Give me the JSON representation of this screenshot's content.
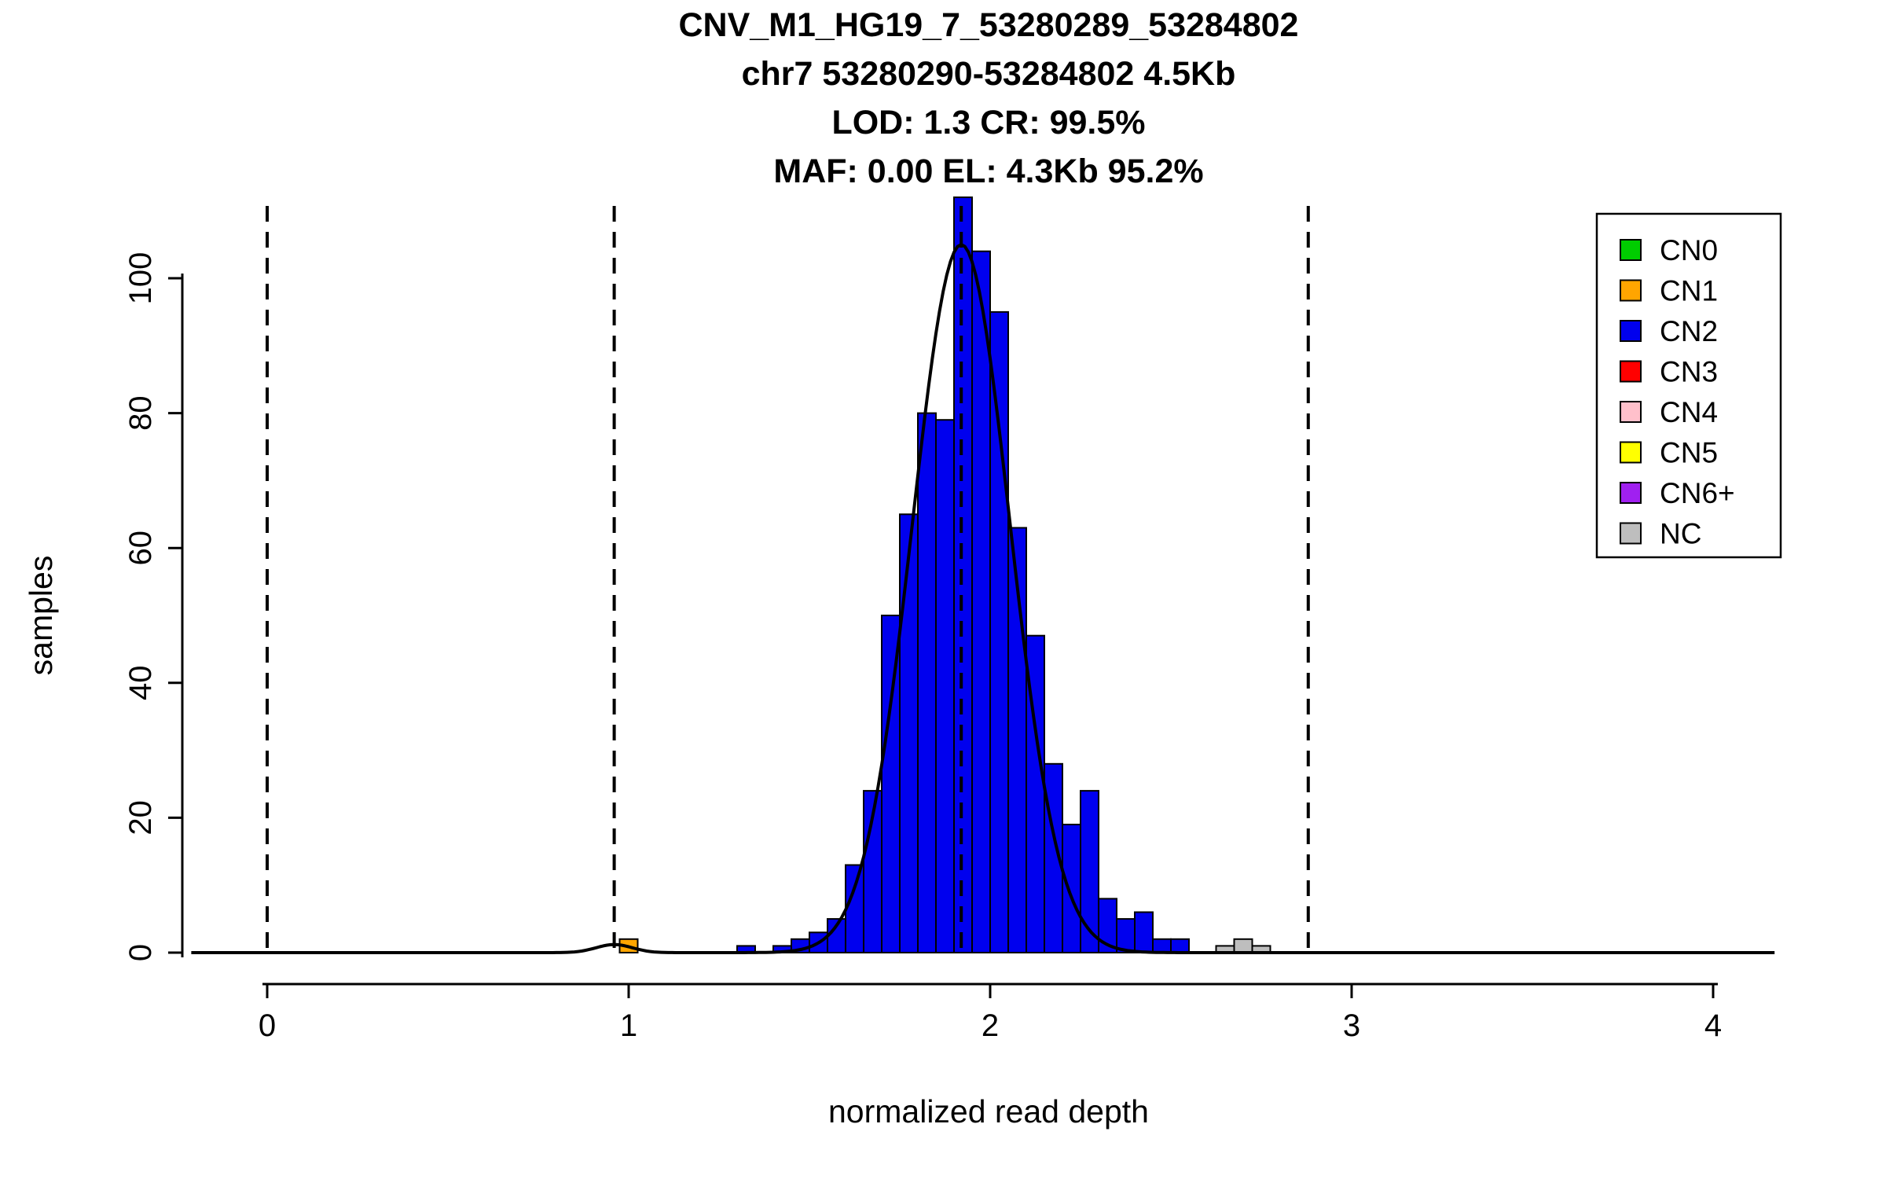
{
  "title_lines": [
    "CNV_M1_HG19_7_53280289_53284802",
    "chr7 53280290-53284802 4.5Kb",
    "LOD: 1.3 CR: 99.5%",
    "MAF: 0.00 EL: 4.3Kb 95.2%"
  ],
  "axes": {
    "x_label": "normalized read depth",
    "y_label": "samples",
    "x_ticks": [
      0,
      1,
      2,
      3,
      4
    ],
    "y_ticks": [
      0,
      20,
      40,
      60,
      80,
      100
    ],
    "x_range": [
      -0.21,
      4.17
    ],
    "y_range": [
      0,
      112
    ]
  },
  "chart_data": {
    "type": "bar",
    "subtype": "histogram",
    "title": "CNV_M1_HG19_7_53280289_53284802",
    "xlabel": "normalized read depth",
    "ylabel": "samples",
    "xlim": [
      -0.21,
      4.17
    ],
    "ylim": [
      0,
      112
    ],
    "bin_width": 0.05,
    "series": [
      {
        "name": "CN1",
        "color": "#FFA500",
        "bins": [
          {
            "x": 0.975,
            "h": 2
          }
        ]
      },
      {
        "name": "CN2",
        "color": "#0000EE",
        "bins": [
          {
            "x": 1.3,
            "h": 1
          },
          {
            "x": 1.4,
            "h": 1
          },
          {
            "x": 1.45,
            "h": 2
          },
          {
            "x": 1.5,
            "h": 3
          },
          {
            "x": 1.55,
            "h": 5
          },
          {
            "x": 1.6,
            "h": 13
          },
          {
            "x": 1.65,
            "h": 24
          },
          {
            "x": 1.7,
            "h": 50
          },
          {
            "x": 1.75,
            "h": 65
          },
          {
            "x": 1.8,
            "h": 80
          },
          {
            "x": 1.85,
            "h": 79
          },
          {
            "x": 1.9,
            "h": 112
          },
          {
            "x": 1.95,
            "h": 104
          },
          {
            "x": 2.0,
            "h": 95
          },
          {
            "x": 2.05,
            "h": 63
          },
          {
            "x": 2.1,
            "h": 47
          },
          {
            "x": 2.15,
            "h": 28
          },
          {
            "x": 2.2,
            "h": 19
          },
          {
            "x": 2.25,
            "h": 24
          },
          {
            "x": 2.3,
            "h": 8
          },
          {
            "x": 2.35,
            "h": 5
          },
          {
            "x": 2.4,
            "h": 6
          },
          {
            "x": 2.45,
            "h": 2
          },
          {
            "x": 2.5,
            "h": 2
          }
        ]
      },
      {
        "name": "NC",
        "color": "#BEBEBE",
        "bins": [
          {
            "x": 2.625,
            "h": 1
          },
          {
            "x": 2.675,
            "h": 2
          },
          {
            "x": 2.725,
            "h": 1
          }
        ]
      }
    ],
    "density_curve": {
      "color": "#000000",
      "components": [
        {
          "mean": 1.92,
          "sd": 0.135,
          "peak": 105
        },
        {
          "mean": 0.96,
          "sd": 0.05,
          "peak": 1.2
        }
      ]
    },
    "dashed_lines": [
      0,
      0.96,
      1.92,
      2.88
    ]
  },
  "legend": {
    "items": [
      {
        "label": "CN0",
        "color": "#00CD00"
      },
      {
        "label": "CN1",
        "color": "#FFA500"
      },
      {
        "label": "CN2",
        "color": "#0000EE"
      },
      {
        "label": "CN3",
        "color": "#FF0000"
      },
      {
        "label": "CN4",
        "color": "#FFC0CB"
      },
      {
        "label": "CN5",
        "color": "#FFFF00"
      },
      {
        "label": "CN6+",
        "color": "#A020F0"
      },
      {
        "label": "NC",
        "color": "#BEBEBE"
      }
    ]
  },
  "colors": {
    "bar_border": "#000000",
    "axis": "#000000",
    "dashed_line": "#000000",
    "curve": "#000000",
    "background": "#FFFFFF"
  }
}
